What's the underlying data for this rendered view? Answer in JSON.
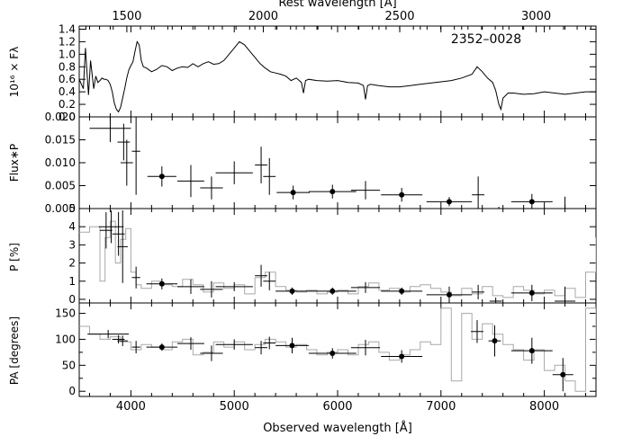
{
  "figure": {
    "object_label": "2352–0028",
    "top_axis_label": "Rest wavelength [Å]",
    "bottom_axis_label": "Observed wavelength [Å]"
  },
  "chart_data": [
    {
      "type": "line",
      "panel": "spectrum",
      "ylabel": "10¹⁶ × Fλ",
      "xlim": [
        3500,
        8500
      ],
      "ylim": [
        0.0,
        1.45
      ],
      "xticks": [
        "4000",
        "5000",
        "6000",
        "7000",
        "8000"
      ],
      "yticks": [
        "0.0",
        "0.2",
        "0.4",
        "0.6",
        "0.8",
        "1.0",
        "1.2",
        "1.4"
      ],
      "top_xticks": [
        "1500",
        "2000",
        "2500",
        "3000"
      ],
      "rest_to_observed_factor": 2.6405,
      "x": [
        3500,
        3540,
        3560,
        3590,
        3610,
        3640,
        3660,
        3680,
        3700,
        3720,
        3740,
        3760,
        3780,
        3800,
        3820,
        3840,
        3860,
        3880,
        3900,
        3920,
        3940,
        3960,
        3980,
        4000,
        4020,
        4040,
        4060,
        4080,
        4100,
        4120,
        4150,
        4200,
        4250,
        4300,
        4350,
        4400,
        4450,
        4500,
        4550,
        4600,
        4650,
        4700,
        4750,
        4800,
        4850,
        4900,
        4950,
        5000,
        5050,
        5100,
        5150,
        5200,
        5250,
        5300,
        5350,
        5400,
        5450,
        5500,
        5550,
        5600,
        5650,
        5670,
        5690,
        5720,
        5800,
        5900,
        6000,
        6100,
        6200,
        6250,
        6270,
        6290,
        6320,
        6400,
        6500,
        6600,
        6700,
        6800,
        6900,
        7000,
        7100,
        7200,
        7300,
        7350,
        7400,
        7450,
        7500,
        7530,
        7560,
        7580,
        7600,
        7650,
        7700,
        7800,
        7900,
        8000,
        8100,
        8200,
        8300,
        8400,
        8500
      ],
      "y": [
        0.6,
        0.45,
        1.1,
        0.35,
        0.9,
        0.45,
        0.65,
        0.55,
        0.58,
        0.62,
        0.6,
        0.6,
        0.58,
        0.52,
        0.4,
        0.22,
        0.12,
        0.08,
        0.15,
        0.3,
        0.45,
        0.62,
        0.75,
        0.82,
        0.88,
        1.05,
        1.2,
        1.15,
        0.9,
        0.8,
        0.78,
        0.72,
        0.76,
        0.82,
        0.8,
        0.74,
        0.78,
        0.8,
        0.79,
        0.85,
        0.8,
        0.85,
        0.88,
        0.84,
        0.85,
        0.9,
        1.0,
        1.1,
        1.2,
        1.15,
        1.05,
        0.95,
        0.85,
        0.78,
        0.72,
        0.7,
        0.68,
        0.65,
        0.58,
        0.62,
        0.55,
        0.38,
        0.58,
        0.6,
        0.58,
        0.57,
        0.58,
        0.55,
        0.54,
        0.5,
        0.28,
        0.5,
        0.52,
        0.5,
        0.48,
        0.48,
        0.5,
        0.52,
        0.54,
        0.56,
        0.58,
        0.62,
        0.68,
        0.8,
        0.72,
        0.62,
        0.55,
        0.42,
        0.2,
        0.12,
        0.3,
        0.38,
        0.38,
        0.36,
        0.37,
        0.4,
        0.38,
        0.36,
        0.38,
        0.4,
        0.4
      ]
    },
    {
      "type": "scatter",
      "panel": "flux_times_p",
      "ylabel": "Flux∗P",
      "xlim": [
        3500,
        8500
      ],
      "ylim": [
        0.0,
        0.02
      ],
      "yticks": [
        "0.000",
        "0.005",
        "0.010",
        "0.015",
        "0.020"
      ],
      "points": [
        {
          "x": 3800,
          "xerr": 200,
          "y": 0.0175,
          "yerr": 0.003,
          "filled": false
        },
        {
          "x": 3930,
          "xerr": 60,
          "y": 0.0145,
          "yerr": 0.004,
          "filled": false
        },
        {
          "x": 3960,
          "xerr": 60,
          "y": 0.01,
          "yerr": 0.005,
          "filled": false
        },
        {
          "x": 4050,
          "xerr": 40,
          "y": 0.0125,
          "yerr": 0.0095,
          "filled": false
        },
        {
          "x": 4300,
          "xerr": 140,
          "y": 0.007,
          "yerr": 0.0022,
          "filled": true
        },
        {
          "x": 4580,
          "xerr": 130,
          "y": 0.006,
          "yerr": 0.0035,
          "filled": false
        },
        {
          "x": 4780,
          "xerr": 110,
          "y": 0.0045,
          "yerr": 0.0025,
          "filled": false
        },
        {
          "x": 5000,
          "xerr": 180,
          "y": 0.0078,
          "yerr": 0.0025,
          "filled": false
        },
        {
          "x": 5260,
          "xerr": 60,
          "y": 0.0095,
          "yerr": 0.004,
          "filled": false
        },
        {
          "x": 5340,
          "xerr": 60,
          "y": 0.007,
          "yerr": 0.004,
          "filled": false
        },
        {
          "x": 5570,
          "xerr": 160,
          "y": 0.0035,
          "yerr": 0.0015,
          "filled": true
        },
        {
          "x": 5950,
          "xerr": 230,
          "y": 0.0037,
          "yerr": 0.0015,
          "filled": true
        },
        {
          "x": 6270,
          "xerr": 140,
          "y": 0.004,
          "yerr": 0.002,
          "filled": false
        },
        {
          "x": 6620,
          "xerr": 200,
          "y": 0.003,
          "yerr": 0.0015,
          "filled": true
        },
        {
          "x": 7080,
          "xerr": 220,
          "y": 0.0015,
          "yerr": 0.001,
          "filled": true
        },
        {
          "x": 7360,
          "xerr": 60,
          "y": 0.003,
          "yerr": 0.004,
          "filled": false
        },
        {
          "x": 7560,
          "xerr": 60,
          "y": -0.0002,
          "yerr": 0.0006,
          "filled": false
        },
        {
          "x": 7880,
          "xerr": 200,
          "y": 0.0015,
          "yerr": 0.0017,
          "filled": true
        },
        {
          "x": 8200,
          "xerr": 100,
          "y": -0.0002,
          "yerr": 0.0028,
          "filled": false
        }
      ]
    },
    {
      "type": "scatter",
      "panel": "polarization",
      "ylabel": "P [%]",
      "xlim": [
        3500,
        8500
      ],
      "ylim": [
        -0.2,
        5.0
      ],
      "yticks": [
        "0",
        "1",
        "2",
        "3",
        "4",
        "5"
      ],
      "points": [
        {
          "x": 3760,
          "xerr": 60,
          "y": 3.8,
          "yerr": 1.0,
          "filled": false
        },
        {
          "x": 3810,
          "xerr": 120,
          "y": 4.0,
          "yerr": 0.9,
          "filled": false
        },
        {
          "x": 3880,
          "xerr": 60,
          "y": 3.6,
          "yerr": 1.2,
          "filled": false
        },
        {
          "x": 3920,
          "xerr": 50,
          "y": 2.9,
          "yerr": 2.0,
          "filled": false
        },
        {
          "x": 4050,
          "xerr": 40,
          "y": 1.2,
          "yerr": 0.6,
          "filled": false
        },
        {
          "x": 4300,
          "xerr": 150,
          "y": 0.85,
          "yerr": 0.3,
          "filled": true
        },
        {
          "x": 4580,
          "xerr": 130,
          "y": 0.7,
          "yerr": 0.4,
          "filled": false
        },
        {
          "x": 4780,
          "xerr": 110,
          "y": 0.55,
          "yerr": 0.45,
          "filled": false
        },
        {
          "x": 5000,
          "xerr": 180,
          "y": 0.7,
          "yerr": 0.25,
          "filled": false
        },
        {
          "x": 5260,
          "xerr": 60,
          "y": 1.3,
          "yerr": 0.6,
          "filled": false
        },
        {
          "x": 5340,
          "xerr": 60,
          "y": 1.0,
          "yerr": 0.5,
          "filled": false
        },
        {
          "x": 5560,
          "xerr": 160,
          "y": 0.45,
          "yerr": 0.2,
          "filled": true
        },
        {
          "x": 5950,
          "xerr": 230,
          "y": 0.45,
          "yerr": 0.2,
          "filled": true
        },
        {
          "x": 6270,
          "xerr": 140,
          "y": 0.65,
          "yerr": 0.3,
          "filled": false
        },
        {
          "x": 6620,
          "xerr": 200,
          "y": 0.45,
          "yerr": 0.2,
          "filled": true
        },
        {
          "x": 7080,
          "xerr": 220,
          "y": 0.25,
          "yerr": 0.45,
          "filled": true
        },
        {
          "x": 7360,
          "xerr": 60,
          "y": 0.4,
          "yerr": 0.4,
          "filled": false
        },
        {
          "x": 7530,
          "xerr": 60,
          "y": -0.1,
          "yerr": 0.2,
          "filled": false
        },
        {
          "x": 7880,
          "xerr": 200,
          "y": 0.35,
          "yerr": 0.45,
          "filled": true
        },
        {
          "x": 8200,
          "xerr": 100,
          "y": -0.1,
          "yerr": 0.8,
          "filled": false
        }
      ],
      "binned_curve": {
        "x": [
          3500,
          3600,
          3700,
          3750,
          3800,
          3850,
          3900,
          3950,
          4000,
          4050,
          4100,
          4200,
          4300,
          4400,
          4500,
          4600,
          4700,
          4800,
          4900,
          5000,
          5100,
          5200,
          5300,
          5400,
          5500,
          5600,
          5700,
          5800,
          5900,
          6000,
          6100,
          6200,
          6300,
          6400,
          6500,
          6600,
          6700,
          6800,
          6900,
          7000,
          7100,
          7200,
          7300,
          7400,
          7500,
          7600,
          7700,
          7800,
          7900,
          8000,
          8100,
          8200,
          8300,
          8400,
          8500
        ],
        "y": [
          3.7,
          4.0,
          1.0,
          3.4,
          4.3,
          2.0,
          3.3,
          3.9,
          1.5,
          0.8,
          0.6,
          1.0,
          0.8,
          0.7,
          1.1,
          0.8,
          0.4,
          0.9,
          0.6,
          0.8,
          0.3,
          1.2,
          1.5,
          0.7,
          0.5,
          0.4,
          0.5,
          0.3,
          0.4,
          0.5,
          0.3,
          0.7,
          0.9,
          0.5,
          0.6,
          0.4,
          0.7,
          0.8,
          0.6,
          0.4,
          0.2,
          0.6,
          0.3,
          0.7,
          0.2,
          0.1,
          0.7,
          0.5,
          0.3,
          0.5,
          0.2,
          0.6,
          0.1,
          1.5,
          3.4
        ]
      }
    },
    {
      "type": "scatter",
      "panel": "position_angle",
      "ylabel": "PA [degrees]",
      "xlim": [
        3500,
        8500
      ],
      "ylim": [
        -10,
        170
      ],
      "yticks": [
        "0",
        "50",
        "100",
        "150"
      ],
      "yminorticks": [
        "25",
        "75",
        "125"
      ],
      "points": [
        {
          "x": 3780,
          "xerr": 200,
          "y": 110,
          "yerr": 8,
          "filled": false
        },
        {
          "x": 3880,
          "xerr": 60,
          "y": 100,
          "yerr": 8,
          "filled": false
        },
        {
          "x": 3920,
          "xerr": 50,
          "y": 97,
          "yerr": 10,
          "filled": false
        },
        {
          "x": 4050,
          "xerr": 40,
          "y": 85,
          "yerr": 12,
          "filled": false
        },
        {
          "x": 4300,
          "xerr": 150,
          "y": 85,
          "yerr": 7,
          "filled": true
        },
        {
          "x": 4580,
          "xerr": 130,
          "y": 92,
          "yerr": 12,
          "filled": false
        },
        {
          "x": 4780,
          "xerr": 110,
          "y": 73,
          "yerr": 15,
          "filled": false
        },
        {
          "x": 5000,
          "xerr": 180,
          "y": 90,
          "yerr": 10,
          "filled": false
        },
        {
          "x": 5260,
          "xerr": 60,
          "y": 84,
          "yerr": 13,
          "filled": false
        },
        {
          "x": 5340,
          "xerr": 60,
          "y": 93,
          "yerr": 12,
          "filled": false
        },
        {
          "x": 5560,
          "xerr": 160,
          "y": 88,
          "yerr": 15,
          "filled": true
        },
        {
          "x": 5950,
          "xerr": 230,
          "y": 73,
          "yerr": 10,
          "filled": true
        },
        {
          "x": 6270,
          "xerr": 140,
          "y": 84,
          "yerr": 15,
          "filled": false
        },
        {
          "x": 6620,
          "xerr": 200,
          "y": 67,
          "yerr": 12,
          "filled": true
        },
        {
          "x": 7350,
          "xerr": 60,
          "y": 115,
          "yerr": 22,
          "filled": false
        },
        {
          "x": 7520,
          "xerr": 60,
          "y": 97,
          "yerr": 30,
          "filled": true
        },
        {
          "x": 7880,
          "xerr": 200,
          "y": 78,
          "yerr": 25,
          "filled": true
        },
        {
          "x": 8180,
          "xerr": 100,
          "y": 32,
          "yerr": 32,
          "filled": true
        }
      ],
      "binned_curve": {
        "x": [
          3500,
          3600,
          3700,
          3800,
          3900,
          4000,
          4100,
          4200,
          4300,
          4400,
          4500,
          4600,
          4700,
          4800,
          4900,
          5000,
          5100,
          5200,
          5300,
          5400,
          5500,
          5600,
          5700,
          5800,
          5900,
          6000,
          6100,
          6200,
          6300,
          6400,
          6500,
          6600,
          6700,
          6800,
          6900,
          7000,
          7100,
          7200,
          7300,
          7400,
          7500,
          7600,
          7700,
          7800,
          7900,
          8000,
          8100,
          8200,
          8300,
          8400,
          8500
        ],
        "y": [
          125,
          110,
          100,
          105,
          95,
          80,
          90,
          85,
          80,
          95,
          100,
          70,
          75,
          95,
          85,
          95,
          80,
          90,
          100,
          95,
          85,
          90,
          80,
          70,
          75,
          80,
          70,
          90,
          95,
          75,
          60,
          70,
          80,
          95,
          90,
          160,
          20,
          150,
          100,
          130,
          110,
          90,
          80,
          60,
          80,
          40,
          50,
          20,
          0,
          160,
          50
        ]
      }
    }
  ]
}
